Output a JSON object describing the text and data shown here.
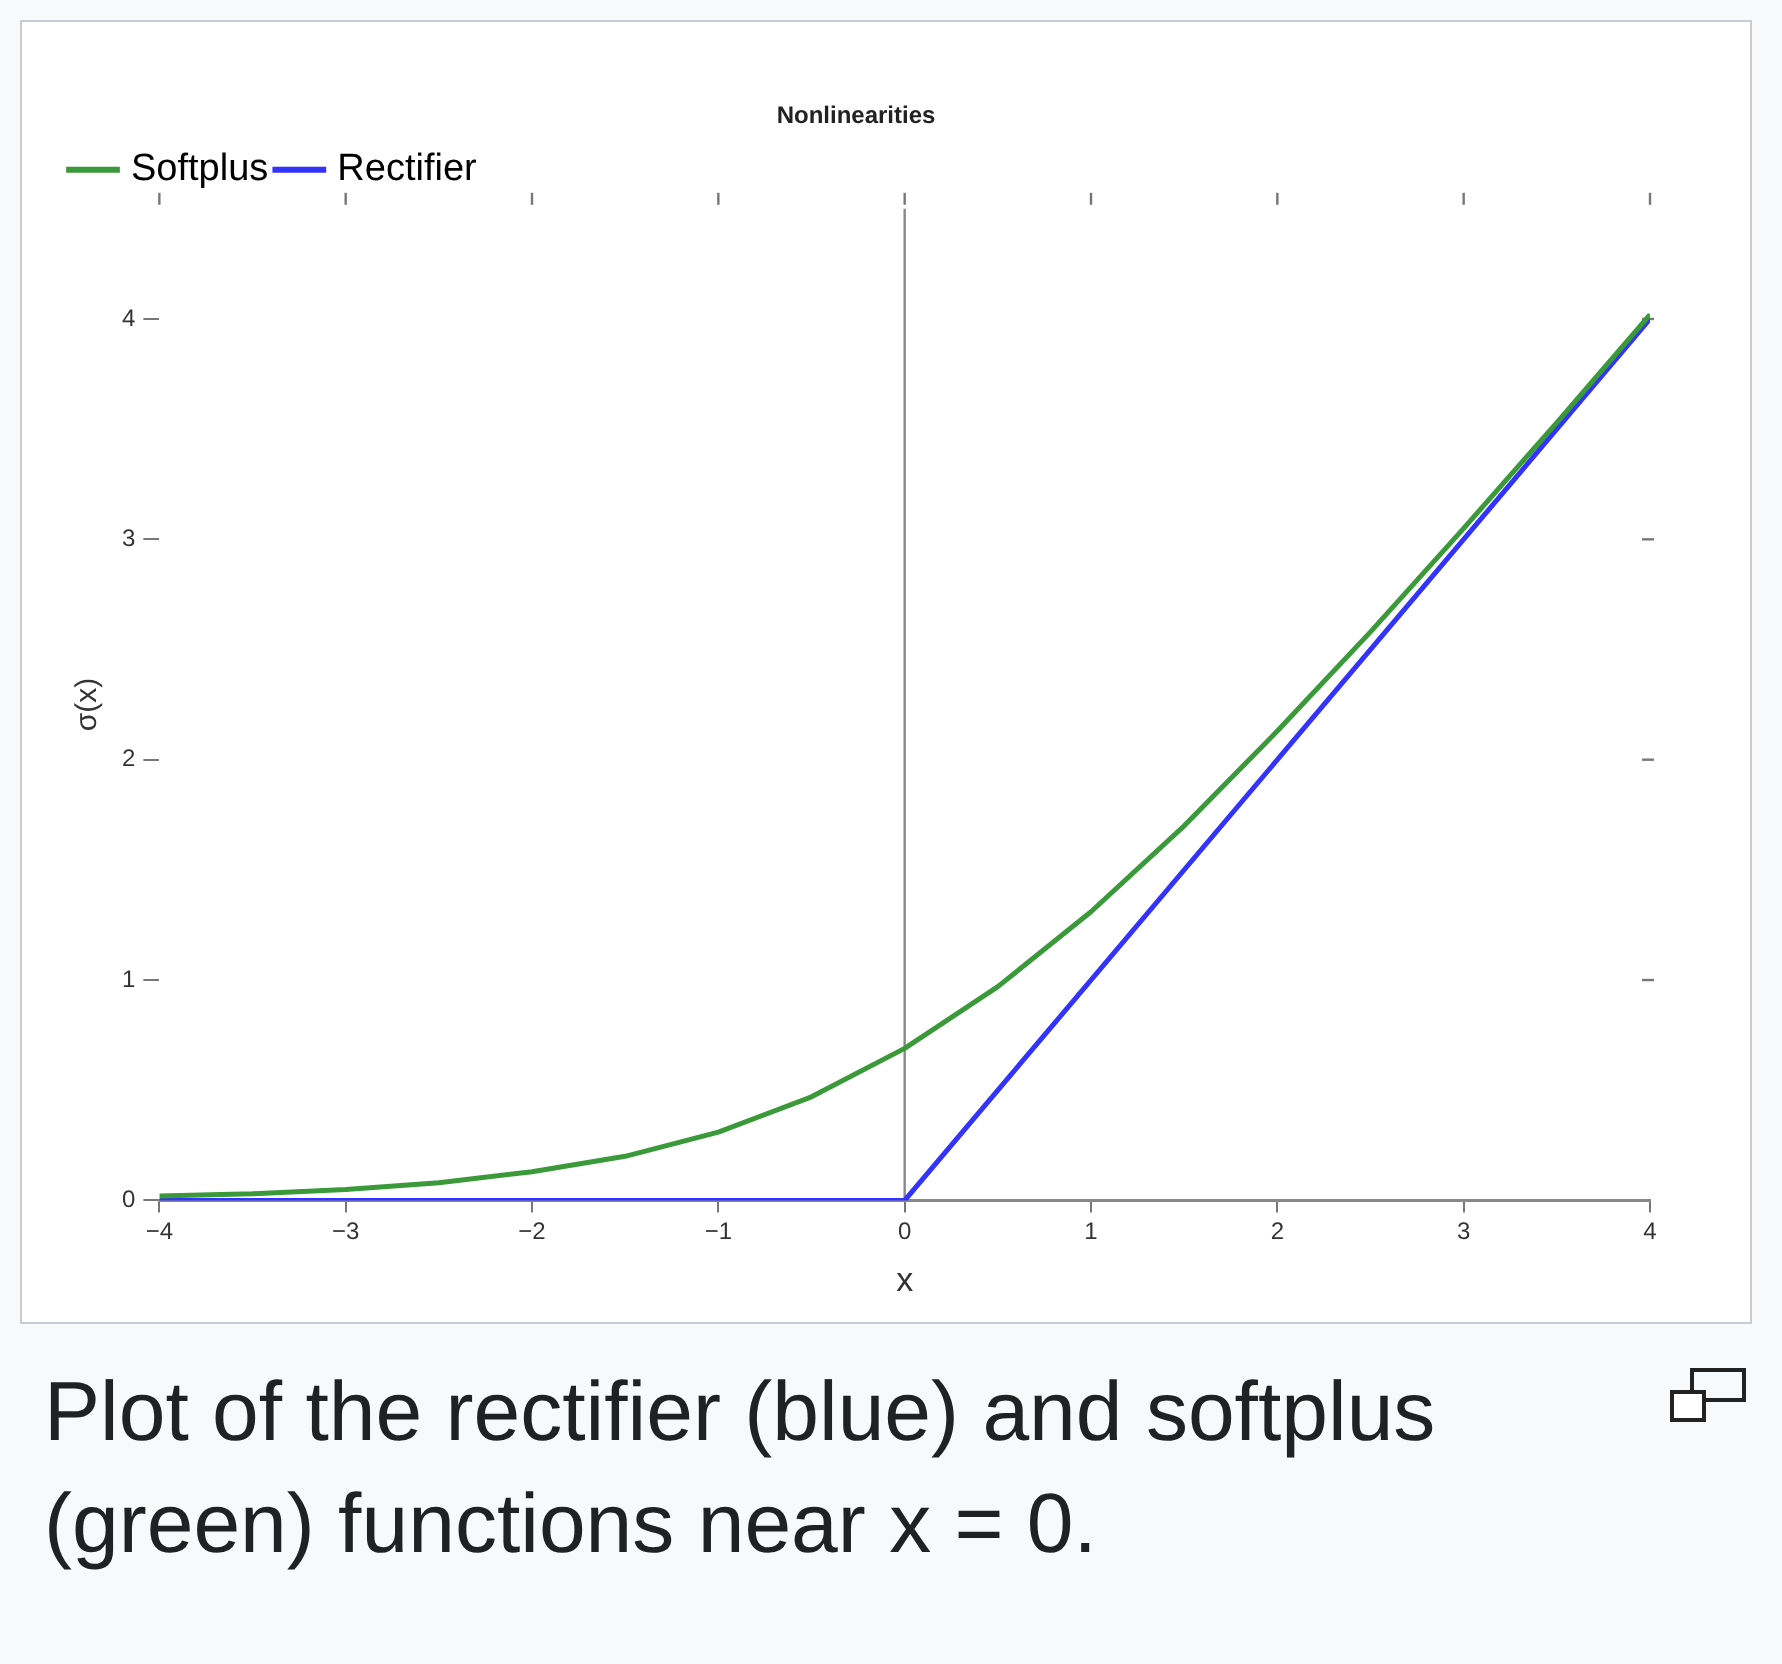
{
  "chart_data": {
    "type": "line",
    "title": "Nonlinearities",
    "xlabel": "x",
    "ylabel": "σ(x)",
    "xlim": [
      -4,
      4
    ],
    "ylim": [
      0,
      4.5
    ],
    "xticks": [
      {
        "value": -4,
        "label": "−4"
      },
      {
        "value": -3,
        "label": "−3"
      },
      {
        "value": -2,
        "label": "−2"
      },
      {
        "value": -1,
        "label": "−1"
      },
      0,
      1,
      2,
      3,
      4
    ],
    "yticks": [
      0,
      1,
      2,
      3,
      4
    ],
    "grid": false,
    "legend": "top left",
    "marker": "none",
    "line_style": "solid",
    "ref_lines": [
      {
        "axis": "x",
        "value": 0,
        "color": "#888888"
      }
    ],
    "series": [
      {
        "name": "Softplus",
        "color": "#3a9a3a",
        "x": [
          -4,
          -3.5,
          -3,
          -2.5,
          -2,
          -1.5,
          -1,
          -0.5,
          0,
          0.5,
          1,
          1.5,
          2,
          2.5,
          3,
          3.5,
          4
        ],
        "values": [
          0.02,
          0.03,
          0.05,
          0.08,
          0.13,
          0.2,
          0.31,
          0.47,
          0.69,
          0.97,
          1.31,
          1.7,
          2.13,
          2.58,
          3.05,
          3.53,
          4.02
        ]
      },
      {
        "name": "Rectifier",
        "color": "#3333ff",
        "x": [
          -4,
          0,
          4
        ],
        "values": [
          0,
          0,
          4
        ]
      }
    ],
    "annotations": [
      "Plot of the rectifier (blue) and softplus (green) functions near x = 0."
    ]
  }
}
